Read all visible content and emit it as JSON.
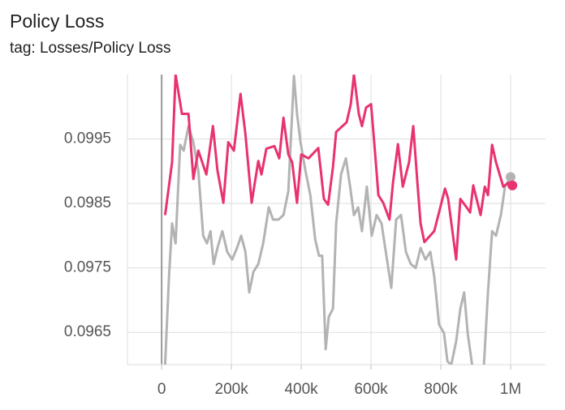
{
  "chart_data": {
    "type": "line",
    "title": "Policy Loss",
    "subtitle": "tag: Losses/Policy Loss",
    "xlim": [
      -98000,
      1100000
    ],
    "ylim": [
      0.096,
      0.1005
    ],
    "xticks": [
      {
        "value": 0,
        "label": "0"
      },
      {
        "value": 200000,
        "label": "200k"
      },
      {
        "value": 400000,
        "label": "400k"
      },
      {
        "value": 600000,
        "label": "600k"
      },
      {
        "value": 800000,
        "label": "800k"
      },
      {
        "value": 1000000,
        "label": "1M"
      }
    ],
    "yticks": [
      0.0965,
      0.0975,
      0.0985,
      0.0995
    ],
    "grid": true,
    "series": [
      {
        "color": "#b3b3b3",
        "x": [
          10000,
          21000,
          30000,
          40000,
          53000,
          63000,
          77000,
          91000,
          105000,
          119000,
          130000,
          140000,
          149000,
          160000,
          174000,
          188000,
          202000,
          216000,
          228000,
          240000,
          251000,
          263000,
          277000,
          291000,
          307000,
          319000,
          335000,
          349000,
          363000,
          379000,
          388000,
          398000,
          412000,
          426000,
          440000,
          451000,
          460000,
          470000,
          479000,
          491000,
          500000,
          514000,
          528000,
          540000,
          551000,
          563000,
          574000,
          588000,
          602000,
          616000,
          630000,
          644000,
          658000,
          672000,
          686000,
          700000,
          714000,
          728000,
          742000,
          756000,
          770000,
          781000,
          795000,
          809000,
          819000,
          830000,
          844000,
          856000,
          867000,
          877000,
          891000,
          923000,
          935000,
          947000,
          958000,
          972000,
          984000,
          1000000
        ],
        "values": [
          0.096,
          0.09737,
          0.09819,
          0.09788,
          0.09941,
          0.09932,
          0.0997,
          0.09945,
          0.09901,
          0.098,
          0.09788,
          0.09807,
          0.09756,
          0.09781,
          0.09807,
          0.09775,
          0.09763,
          0.09781,
          0.098,
          0.09775,
          0.09712,
          0.09744,
          0.09756,
          0.09788,
          0.09844,
          0.09825,
          0.09825,
          0.09832,
          0.09869,
          0.10048,
          0.09989,
          0.09945,
          0.09901,
          0.09863,
          0.09794,
          0.09769,
          0.09769,
          0.09624,
          0.09674,
          0.09687,
          0.09819,
          0.09895,
          0.0992,
          0.09876,
          0.09832,
          0.09844,
          0.09807,
          0.09876,
          0.098,
          0.09832,
          0.09819,
          0.09769,
          0.09719,
          0.09825,
          0.09832,
          0.09775,
          0.09756,
          0.0975,
          0.09781,
          0.09763,
          0.09775,
          0.09737,
          0.09662,
          0.09649,
          0.09605,
          0.096,
          0.09636,
          0.09687,
          0.09712,
          0.09649,
          0.09594,
          0.09594,
          0.09712,
          0.09807,
          0.098,
          0.09832,
          0.09876,
          0.09891
        ]
      },
      {
        "color": "#e8336e",
        "x": [
          10000,
          30000,
          40000,
          58000,
          77000,
          91000,
          105000,
          128000,
          147000,
          160000,
          177000,
          191000,
          207000,
          226000,
          240000,
          258000,
          277000,
          286000,
          300000,
          323000,
          337000,
          349000,
          363000,
          374000,
          388000,
          400000,
          421000,
          449000,
          465000,
          477000,
          491000,
          500000,
          530000,
          542000,
          551000,
          565000,
          574000,
          586000,
          600000,
          612000,
          621000,
          635000,
          653000,
          663000,
          677000,
          691000,
          709000,
          721000,
          733000,
          742000,
          753000,
          781000,
          793000,
          812000,
          821000,
          844000,
          856000,
          874000,
          884000,
          893000,
          914000,
          926000,
          935000,
          947000,
          958000,
          979000,
          993000,
          1005000
        ],
        "values": [
          0.09832,
          0.09914,
          0.1005,
          0.09989,
          0.09989,
          0.09888,
          0.09932,
          0.09895,
          0.0997,
          0.09901,
          0.09851,
          0.09945,
          0.09932,
          0.1002,
          0.09958,
          0.09851,
          0.09916,
          0.09895,
          0.09935,
          0.09939,
          0.0992,
          0.09983,
          0.09926,
          0.09914,
          0.09851,
          0.09926,
          0.0992,
          0.09936,
          0.09857,
          0.09848,
          0.09907,
          0.09961,
          0.09976,
          0.10004,
          0.1005,
          0.09989,
          0.0997,
          0.09999,
          0.10004,
          0.09926,
          0.09863,
          0.09851,
          0.09825,
          0.09882,
          0.09942,
          0.09876,
          0.09914,
          0.0997,
          0.09882,
          0.09819,
          0.0979,
          0.09807,
          0.09832,
          0.09873,
          0.09857,
          0.09763,
          0.09857,
          0.09844,
          0.09836,
          0.09878,
          0.09832,
          0.09876,
          0.09863,
          0.09941,
          0.09914,
          0.09876,
          0.09882,
          0.09878
        ]
      }
    ]
  }
}
